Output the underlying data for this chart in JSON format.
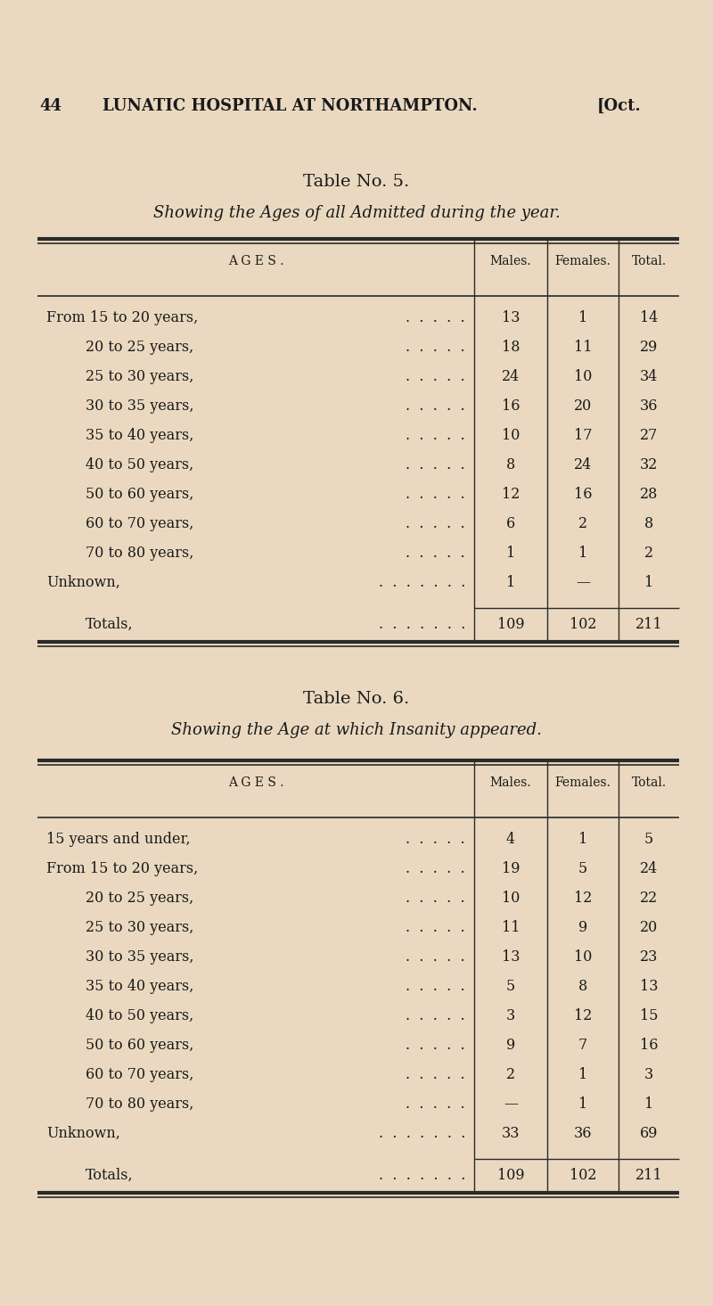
{
  "bg_color": "#EAD9C0",
  "text_color": "#1a1a1a",
  "table5_title": "Table No. 5.",
  "table5_subtitle": "Showing the Ages of all Admitted during the year.",
  "table5_col_headers": [
    "AGES.",
    "Males.",
    "Females.",
    "Total."
  ],
  "table5_rows": [
    [
      "From 15 to 20 years,",
      "13",
      "1",
      "14"
    ],
    [
      "20 to 25 years,",
      "18",
      "11",
      "29"
    ],
    [
      "25 to 30 years,",
      "24",
      "10",
      "34"
    ],
    [
      "30 to 35 years,",
      "16",
      "20",
      "36"
    ],
    [
      "35 to 40 years,",
      "10",
      "17",
      "27"
    ],
    [
      "40 to 50 years,",
      "8",
      "24",
      "32"
    ],
    [
      "50 to 60 years,",
      "12",
      "16",
      "28"
    ],
    [
      "60 to 70 years,",
      "6",
      "2",
      "8"
    ],
    [
      "70 to 80 years,",
      "1",
      "1",
      "2"
    ],
    [
      "Unknown,",
      "1",
      "—",
      "1"
    ]
  ],
  "table5_total_row": [
    "Totals,",
    "109",
    "102",
    "211"
  ],
  "table6_title": "Table No. 6.",
  "table6_subtitle": "Showing the Age at which Insanity appeared.",
  "table6_col_headers": [
    "AGES.",
    "Males.",
    "Females.",
    "Total."
  ],
  "table6_rows": [
    [
      "15 years and under,",
      "4",
      "1",
      "5"
    ],
    [
      "From 15 to 20 years,",
      "19",
      "5",
      "24"
    ],
    [
      "20 to 25 years,",
      "10",
      "12",
      "22"
    ],
    [
      "25 to 30 years,",
      "11",
      "9",
      "20"
    ],
    [
      "30 to 35 years,",
      "13",
      "10",
      "23"
    ],
    [
      "35 to 40 years,",
      "5",
      "8",
      "13"
    ],
    [
      "40 to 50 years,",
      "3",
      "12",
      "15"
    ],
    [
      "50 to 60 years,",
      "9",
      "7",
      "16"
    ],
    [
      "60 to 70 years,",
      "2",
      "1",
      "3"
    ],
    [
      "70 to 80 years,",
      "—",
      "1",
      "1"
    ],
    [
      "Unknown,",
      "33",
      "36",
      "69"
    ]
  ],
  "table6_total_row": [
    "Totals,",
    "109",
    "102",
    "211"
  ],
  "page_num": "44",
  "page_title": "LUNATIC HOSPITAL AT NORTHAMPTON.",
  "page_right": "[Oct."
}
